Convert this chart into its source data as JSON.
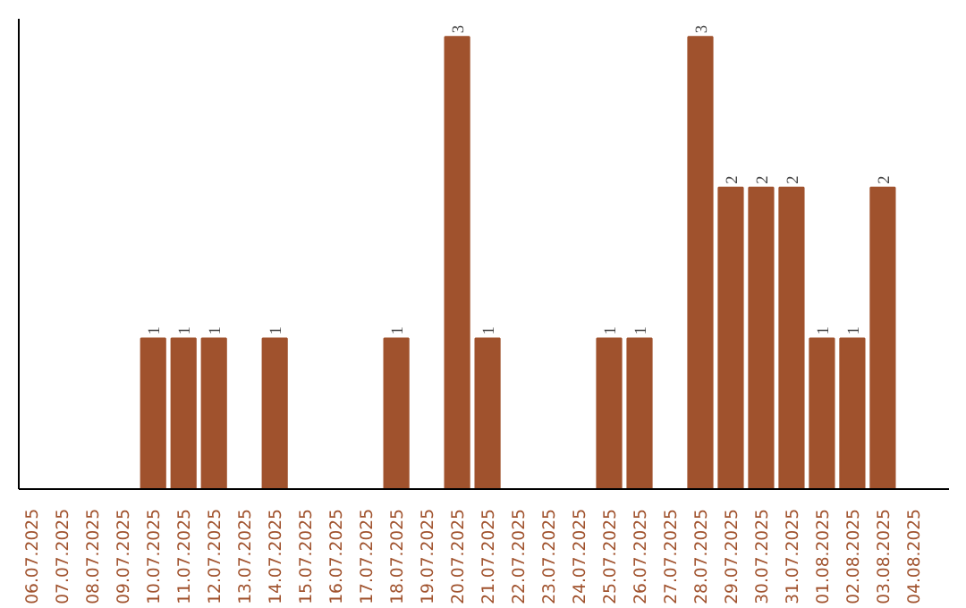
{
  "chart_data": {
    "type": "bar",
    "categories": [
      "06.07.2025",
      "07.07.2025",
      "08.07.2025",
      "09.07.2025",
      "10.07.2025",
      "11.07.2025",
      "12.07.2025",
      "13.07.2025",
      "14.07.2025",
      "15.07.2025",
      "16.07.2025",
      "17.07.2025",
      "18.07.2025",
      "19.07.2025",
      "20.07.2025",
      "21.07.2025",
      "22.07.2025",
      "23.07.2025",
      "24.07.2025",
      "25.07.2025",
      "26.07.2025",
      "27.07.2025",
      "28.07.2025",
      "29.07.2025",
      "30.07.2025",
      "31.07.2025",
      "01.08.2025",
      "02.08.2025",
      "03.08.2025",
      "04.08.2025"
    ],
    "values": [
      null,
      null,
      null,
      null,
      1,
      1,
      1,
      null,
      1,
      null,
      null,
      null,
      1,
      null,
      3,
      1,
      null,
      null,
      null,
      1,
      1,
      null,
      3,
      2,
      2,
      2,
      1,
      1,
      2,
      null
    ],
    "color": "#a0522d",
    "data_labels": true,
    "ylim": [
      0,
      3.12
    ]
  }
}
